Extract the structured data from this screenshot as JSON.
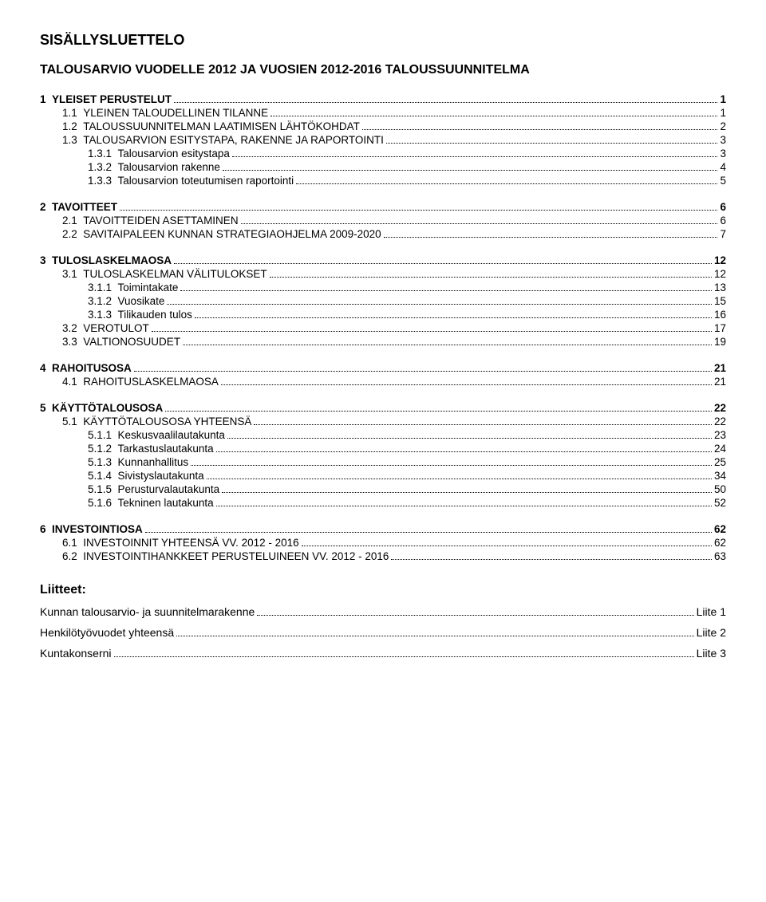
{
  "title": "SISÄLLYSLUETTELO",
  "subtitle": "TALOUSARVIO VUODELLE 2012 JA VUOSIEN 2012-2016 TALOUSSUUNNITELMA",
  "toc": [
    {
      "indent": 0,
      "num": "1",
      "text": "YLEISET PERUSTELUT",
      "page": "1",
      "bold": true,
      "spacer_before": false
    },
    {
      "indent": 1,
      "num": "1.1",
      "text": "YLEINEN TALOUDELLINEN TILANNE",
      "page": "1",
      "smallcaps": true
    },
    {
      "indent": 1,
      "num": "1.2",
      "text": "TALOUSSUUNNITELMAN LAATIMISEN LÄHTÖKOHDAT",
      "page": "2",
      "smallcaps": true
    },
    {
      "indent": 1,
      "num": "1.3",
      "text": "TALOUSARVION ESITYSTAPA, RAKENNE JA RAPORTOINTI",
      "page": "3",
      "smallcaps": true
    },
    {
      "indent": 2,
      "num": "1.3.1",
      "text": "Talousarvion esitystapa",
      "page": "3"
    },
    {
      "indent": 2,
      "num": "1.3.2",
      "text": "Talousarvion rakenne",
      "page": "4"
    },
    {
      "indent": 2,
      "num": "1.3.3",
      "text": "Talousarvion toteutumisen raportointi",
      "page": "5"
    },
    {
      "indent": 0,
      "num": "2",
      "text": "TAVOITTEET",
      "page": "6",
      "bold": true,
      "spacer_before": true
    },
    {
      "indent": 1,
      "num": "2.1",
      "text": "TAVOITTEIDEN ASETTAMINEN",
      "page": "6",
      "smallcaps": true
    },
    {
      "indent": 1,
      "num": "2.2",
      "text": "SAVITAIPALEEN KUNNAN STRATEGIAOHJELMA 2009-2020",
      "page": "7",
      "smallcaps": true
    },
    {
      "indent": 0,
      "num": "3",
      "text": "TULOSLASKELMAOSA",
      "page": "12",
      "bold": true,
      "spacer_before": true
    },
    {
      "indent": 1,
      "num": "3.1",
      "text": "TULOSLASKELMAN VÄLITULOKSET",
      "page": "12",
      "smallcaps": true
    },
    {
      "indent": 2,
      "num": "3.1.1",
      "text": "Toimintakate",
      "page": "13"
    },
    {
      "indent": 2,
      "num": "3.1.2",
      "text": "Vuosikate",
      "page": "15"
    },
    {
      "indent": 2,
      "num": "3.1.3",
      "text": "Tilikauden tulos",
      "page": "16"
    },
    {
      "indent": 1,
      "num": "3.2",
      "text": "VEROTULOT",
      "page": "17",
      "smallcaps": true
    },
    {
      "indent": 1,
      "num": "3.3",
      "text": "VALTIONOSUUDET",
      "page": "19",
      "smallcaps": true
    },
    {
      "indent": 0,
      "num": "4",
      "text": "RAHOITUSOSA",
      "page": "21",
      "bold": true,
      "spacer_before": true
    },
    {
      "indent": 1,
      "num": "4.1",
      "text": "RAHOITUSLASKELMAOSA",
      "page": "21",
      "smallcaps": true
    },
    {
      "indent": 0,
      "num": "5",
      "text": "KÄYTTÖTALOUSOSA",
      "page": "22",
      "bold": true,
      "spacer_before": true
    },
    {
      "indent": 1,
      "num": "5.1",
      "text": "KÄYTTÖTALOUSOSA YHTEENSÄ",
      "page": "22",
      "smallcaps": true
    },
    {
      "indent": 2,
      "num": "5.1.1",
      "text": "Keskusvaalilautakunta",
      "page": "23"
    },
    {
      "indent": 2,
      "num": "5.1.2",
      "text": "Tarkastuslautakunta",
      "page": "24"
    },
    {
      "indent": 2,
      "num": "5.1.3",
      "text": "Kunnanhallitus",
      "page": "25"
    },
    {
      "indent": 2,
      "num": "5.1.4",
      "text": "Sivistyslautakunta",
      "page": "34"
    },
    {
      "indent": 2,
      "num": "5.1.5",
      "text": "Perusturvalautakunta",
      "page": "50"
    },
    {
      "indent": 2,
      "num": "5.1.6",
      "text": "Tekninen lautakunta",
      "page": "52"
    },
    {
      "indent": 0,
      "num": "6",
      "text": "INVESTOINTIOSA",
      "page": "62",
      "bold": true,
      "spacer_before": true
    },
    {
      "indent": 1,
      "num": "6.1",
      "text": "INVESTOINNIT YHTEENSÄ VV. 2012 - 2016",
      "page": "62",
      "smallcaps": true
    },
    {
      "indent": 1,
      "num": "6.2",
      "text": "INVESTOINTIHANKKEET PERUSTELUINEEN VV. 2012 - 2016",
      "page": "63",
      "smallcaps": true
    }
  ],
  "liitteet_title": "Liitteet:",
  "liitteet": [
    {
      "text": "Kunnan talousarvio- ja suunnitelmarakenne",
      "ref": "Liite 1"
    },
    {
      "text": "Henkilötyövuodet yhteensä",
      "ref": "Liite 2"
    },
    {
      "text": "Kuntakonserni",
      "ref": "Liite 3"
    }
  ]
}
